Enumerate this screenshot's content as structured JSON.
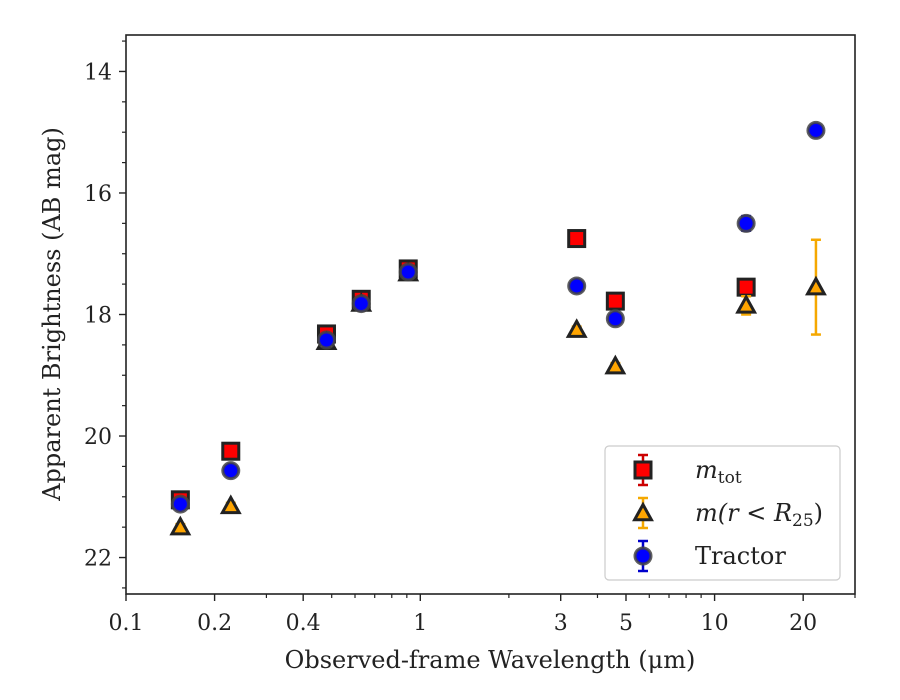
{
  "chart_data": {
    "type": "scatter",
    "xlabel": "Observed-frame Wavelength (μm)",
    "ylabel": "Apparent Brightness (AB mag)",
    "x_scale": "log",
    "xlim": [
      0.1,
      30
    ],
    "ylim": [
      22.6,
      13.4
    ],
    "y_inverted": true,
    "x_ticks": [
      {
        "value": 0.1,
        "label": "0.1"
      },
      {
        "value": 0.2,
        "label": "0.2"
      },
      {
        "value": 0.4,
        "label": "0.4"
      },
      {
        "value": 1,
        "label": "1"
      },
      {
        "value": 3,
        "label": "3"
      },
      {
        "value": 5,
        "label": "5"
      },
      {
        "value": 10,
        "label": "10"
      },
      {
        "value": 20,
        "label": "20"
      }
    ],
    "y_ticks": [
      {
        "value": 14,
        "label": "14"
      },
      {
        "value": 16,
        "label": "16"
      },
      {
        "value": 18,
        "label": "18"
      },
      {
        "value": 20,
        "label": "20"
      },
      {
        "value": 22,
        "label": "22"
      }
    ],
    "legend_position": "lower-right",
    "series": [
      {
        "name": "m_tot",
        "legend_base": "m",
        "legend_sub": "tot",
        "marker": "square",
        "color": "#ff0000",
        "edge_color": "#222222",
        "error_color": "#cc0000",
        "points": [
          {
            "x": 0.153,
            "y": 21.05,
            "err": 0.1
          },
          {
            "x": 0.227,
            "y": 20.25,
            "err": 0.08
          },
          {
            "x": 0.48,
            "y": 18.32,
            "err": 0.08
          },
          {
            "x": 0.63,
            "y": 17.75,
            "err": 0.06
          },
          {
            "x": 0.91,
            "y": 17.25,
            "err": 0.06
          },
          {
            "x": 3.4,
            "y": 16.75,
            "err": 0.05
          },
          {
            "x": 4.6,
            "y": 17.78,
            "err": 0.05
          },
          {
            "x": 12.8,
            "y": 17.55,
            "err": 0.1
          }
        ]
      },
      {
        "name": "m(r < R_25)",
        "legend_text": "m(r < R",
        "legend_sub": "25",
        "legend_close": ")",
        "marker": "triangle",
        "color": "#ffa500",
        "edge_color": "#222222",
        "error_color": "#f5a800",
        "points": [
          {
            "x": 0.153,
            "y": 21.5,
            "err": 0.05
          },
          {
            "x": 0.227,
            "y": 21.15,
            "err": 0.05
          },
          {
            "x": 0.48,
            "y": 18.45,
            "err": 0.05
          },
          {
            "x": 0.63,
            "y": 17.82,
            "err": 0.05
          },
          {
            "x": 0.91,
            "y": 17.32,
            "err": 0.05
          },
          {
            "x": 3.4,
            "y": 18.25,
            "err": 0.05
          },
          {
            "x": 4.6,
            "y": 18.85,
            "err": 0.05
          },
          {
            "x": 12.8,
            "y": 17.85,
            "err": 0.15
          },
          {
            "x": 22.1,
            "y": 17.55,
            "err": 0.78
          }
        ]
      },
      {
        "name": "Tractor",
        "legend_text": "Tractor",
        "marker": "circle",
        "color": "#0000ff",
        "edge_color": "#444444",
        "error_color": "#0000cc",
        "points": [
          {
            "x": 0.153,
            "y": 21.12,
            "err": 0.06
          },
          {
            "x": 0.227,
            "y": 20.57,
            "err": 0.06
          },
          {
            "x": 0.48,
            "y": 18.42,
            "err": 0.05
          },
          {
            "x": 0.63,
            "y": 17.82,
            "err": 0.05
          },
          {
            "x": 0.91,
            "y": 17.3,
            "err": 0.05
          },
          {
            "x": 3.4,
            "y": 17.53,
            "err": 0.05
          },
          {
            "x": 4.6,
            "y": 18.07,
            "err": 0.05
          },
          {
            "x": 12.8,
            "y": 16.5,
            "err": 0.12
          },
          {
            "x": 22.1,
            "y": 14.97,
            "err": 0.06
          }
        ]
      }
    ]
  }
}
